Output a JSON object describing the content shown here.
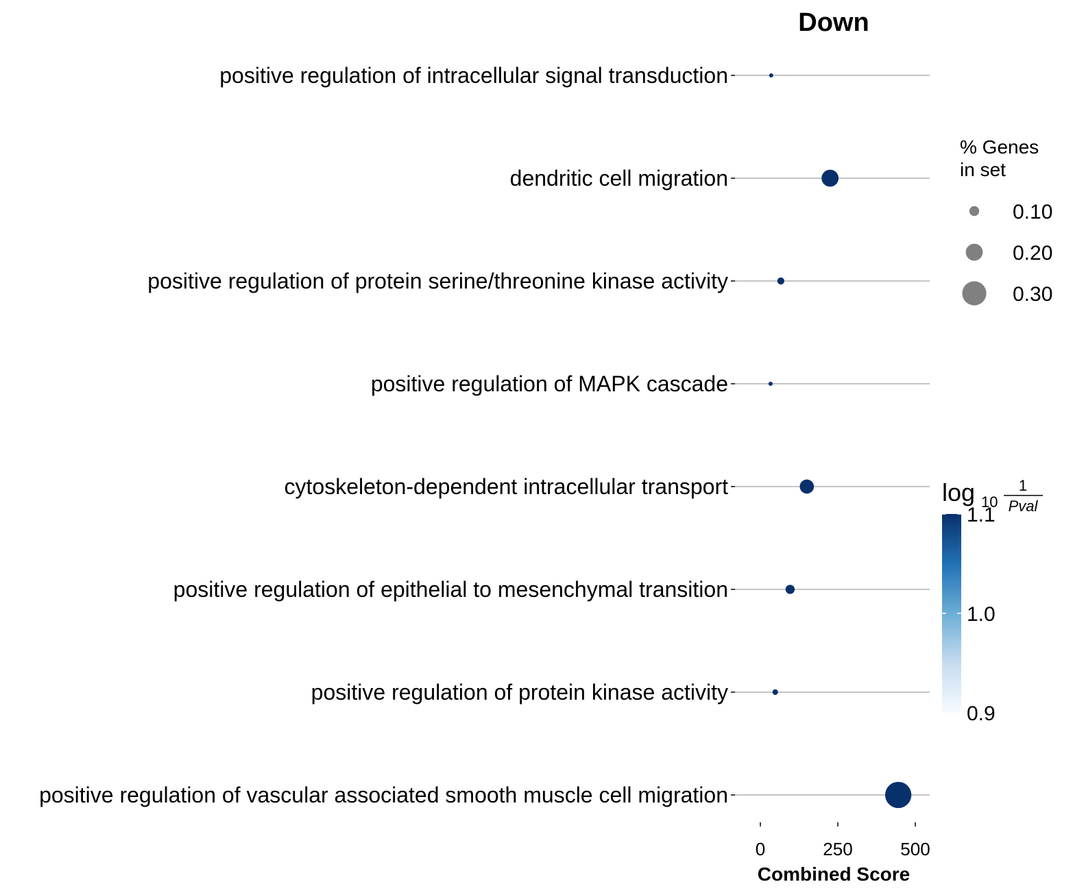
{
  "chart_data": {
    "type": "scatter",
    "title": "Down",
    "xlabel": "Combined Score",
    "ylabel": "",
    "xlim": [
      -45,
      545
    ],
    "xticks": [
      "0",
      "250",
      "500"
    ],
    "grid": "horizontal lines per term",
    "terms": [
      "positive regulation of intracellular signal transduction",
      "dendritic cell migration",
      "positive regulation of protein serine/threonine kinase activity",
      "positive regulation of MAPK cascade",
      "cytoskeleton-dependent intracellular transport",
      "positive regulation of epithelial to mesenchymal transition",
      "positive regulation of protein kinase activity",
      "positive regulation of vascular associated smooth muscle cell migration"
    ],
    "x": [
      35,
      225,
      66,
      33,
      150,
      96,
      48,
      445
    ],
    "pct_genes": [
      0.02,
      0.2,
      0.06,
      0.02,
      0.16,
      0.09,
      0.04,
      0.33
    ],
    "log10_inv_pval": [
      1.1,
      1.1,
      1.1,
      1.1,
      1.1,
      1.1,
      1.1,
      1.1
    ],
    "point_color": "#08306b",
    "size_legend": {
      "title_line1": "% Genes",
      "title_line2": "in set",
      "labels": [
        "0.10",
        "0.20",
        "0.30"
      ],
      "values": [
        0.1,
        0.2,
        0.3
      ],
      "marker_color": "#808080",
      "placement": "right"
    },
    "colorbar": {
      "title_main": "log",
      "title_sub": "10",
      "title_num": "1",
      "title_den": "Pval",
      "ticks": [
        "1.1",
        "1.0",
        "0.9"
      ],
      "range": [
        0.9,
        1.1
      ],
      "colormap": [
        "#f7fbff",
        "#c6dbef",
        "#6baed6",
        "#2171b5",
        "#08306b"
      ],
      "placement": "right"
    }
  }
}
